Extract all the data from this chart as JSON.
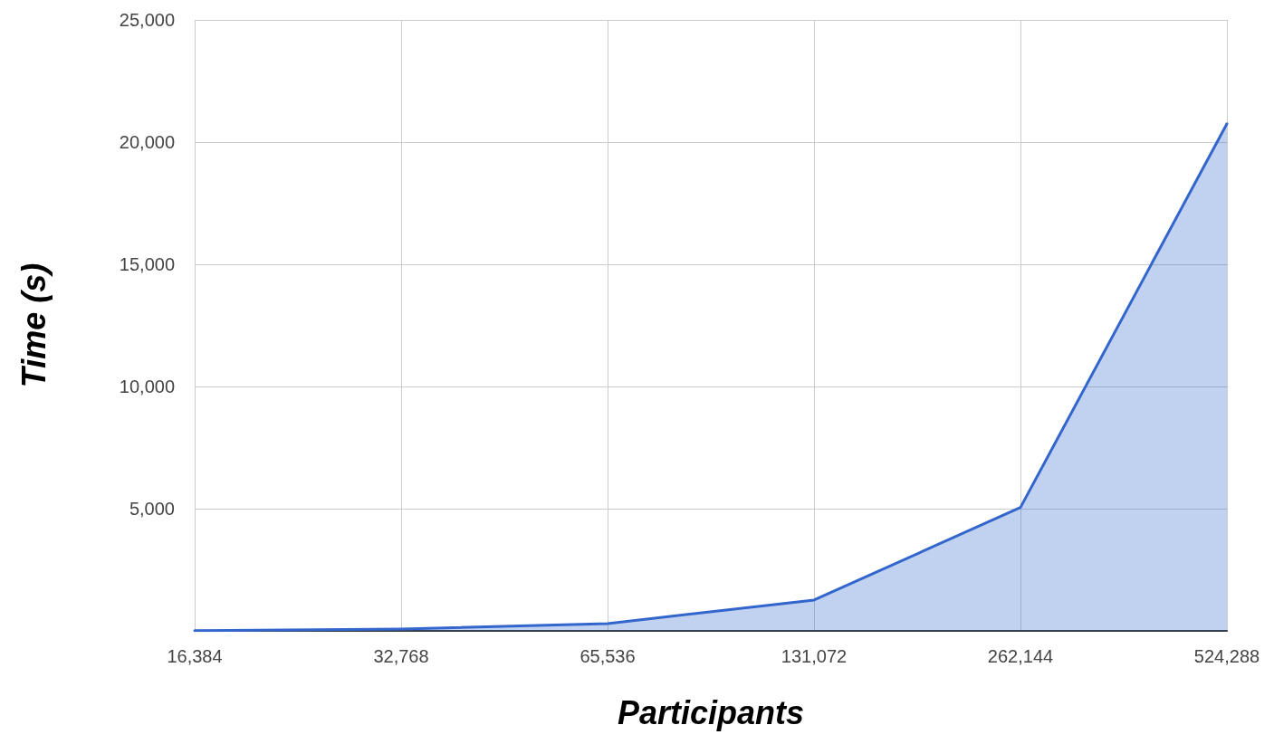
{
  "chart_data": {
    "type": "area",
    "xlabel": "Participants",
    "ylabel": "Time (s)",
    "categories": [
      "16,384",
      "32,768",
      "65,536",
      "131,072",
      "262,144",
      "524,288"
    ],
    "series": [
      {
        "color": "#3366cc",
        "values": [
          10,
          70,
          300,
          1260,
          5050,
          20750
        ]
      }
    ],
    "ylim": [
      0,
      25000
    ],
    "yticks": [
      {
        "value": 0,
        "label": null
      },
      {
        "value": 5000,
        "label": "5,000"
      },
      {
        "value": 10000,
        "label": "10,000"
      },
      {
        "value": 15000,
        "label": "15,000"
      },
      {
        "value": 20000,
        "label": "20,000"
      },
      {
        "value": 25000,
        "label": "25,000"
      }
    ],
    "grid": true,
    "marker": "none",
    "line_style": "solid"
  }
}
